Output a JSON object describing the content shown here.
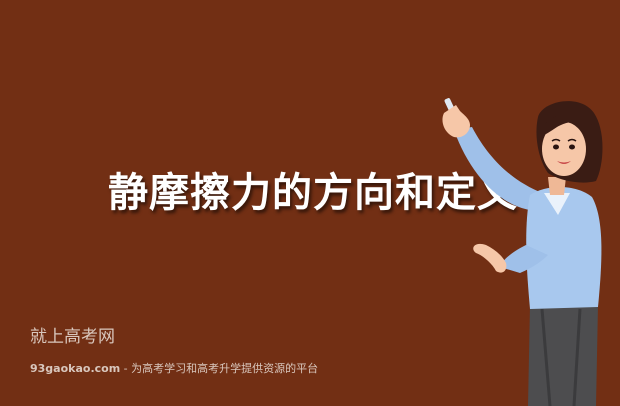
{
  "slide": {
    "title": "静摩擦力的方向和定义"
  },
  "watermark": {
    "brand": "就上高考网",
    "site": "93gaokao.com",
    "tagline": " - 为高考学习和高考升学提供资源的平台"
  },
  "illustration": {
    "icon": "teacher-with-chalk-illustration"
  },
  "colors": {
    "background": "#722f14",
    "title": "#ffffff",
    "watermark": "#d9c7bd",
    "shirt": "#a8c8ee",
    "hair": "#3a1c14",
    "skin": "#f6c7a8"
  }
}
